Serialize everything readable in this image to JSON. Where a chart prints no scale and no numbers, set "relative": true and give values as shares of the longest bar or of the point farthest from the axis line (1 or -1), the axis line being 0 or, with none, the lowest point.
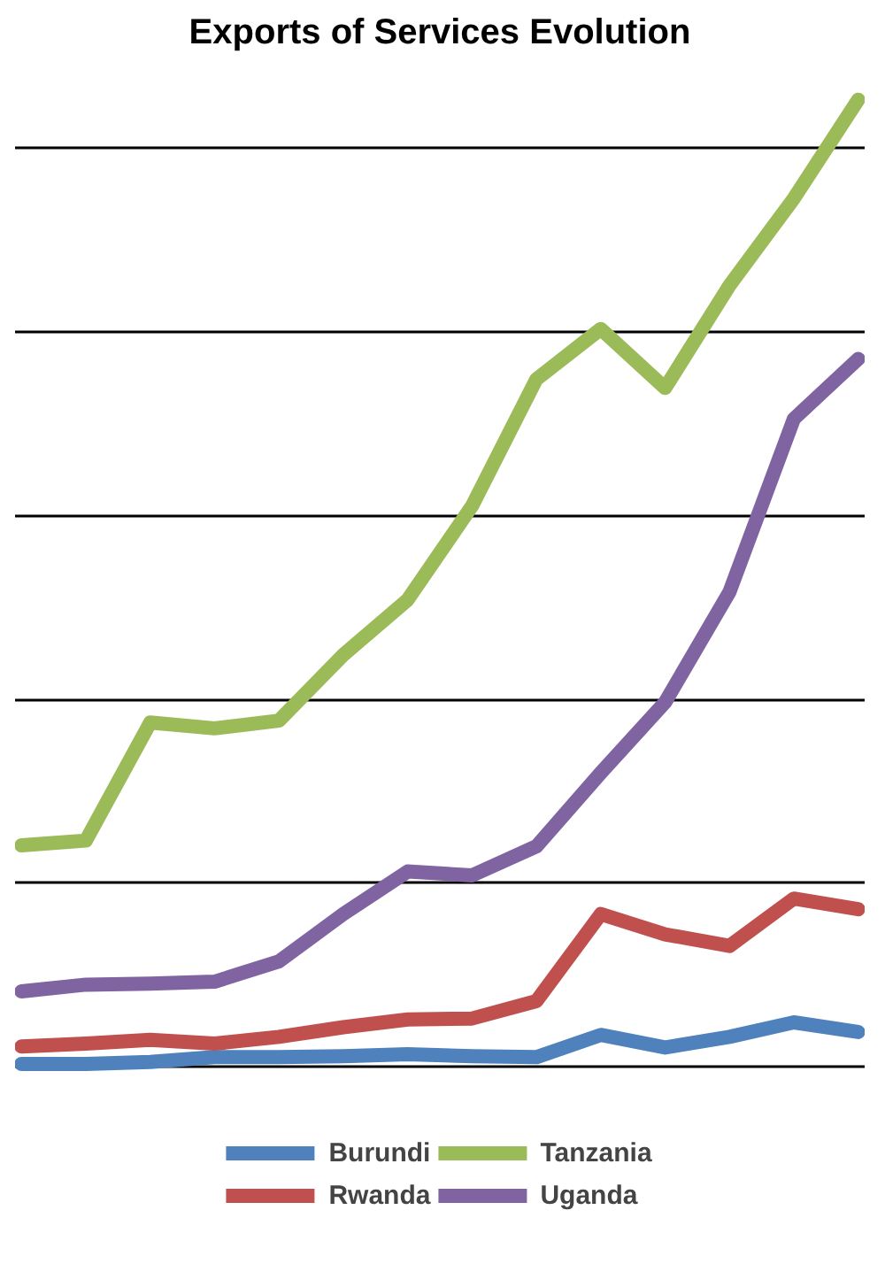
{
  "chart_data": {
    "type": "line",
    "title": "Exports of Services Evolution",
    "relative": true,
    "grid": "y",
    "legend": "bottom",
    "line_style": "solid",
    "categories": [
      null,
      null,
      null,
      null,
      null,
      null,
      null,
      null,
      null,
      null,
      null,
      null,
      null,
      null
    ],
    "series": [
      {
        "name": "Burundi",
        "color": "#4f81bd",
        "values": [
          0.003,
          0.003,
          0.005,
          0.01,
          0.01,
          0.011,
          0.013,
          0.011,
          0.01,
          0.033,
          0.02,
          0.031,
          0.046,
          0.036
        ]
      },
      {
        "name": "Rwanda",
        "color": "#c0504d",
        "values": [
          0.021,
          0.024,
          0.028,
          0.024,
          0.031,
          0.041,
          0.049,
          0.05,
          0.068,
          0.158,
          0.137,
          0.125,
          0.174,
          0.163
        ]
      },
      {
        "name": "Tanzania",
        "color": "#9bbb59",
        "values": [
          0.229,
          0.234,
          0.356,
          0.35,
          0.358,
          0.426,
          0.483,
          0.58,
          0.711,
          0.763,
          0.702,
          0.808,
          0.898,
          1
        ]
      },
      {
        "name": "Uganda",
        "color": "#8064a2",
        "values": [
          0.078,
          0.085,
          0.086,
          0.088,
          0.109,
          0.158,
          0.202,
          0.198,
          0.228,
          0.304,
          0.377,
          0.491,
          0.67,
          0.732
        ]
      }
    ]
  }
}
